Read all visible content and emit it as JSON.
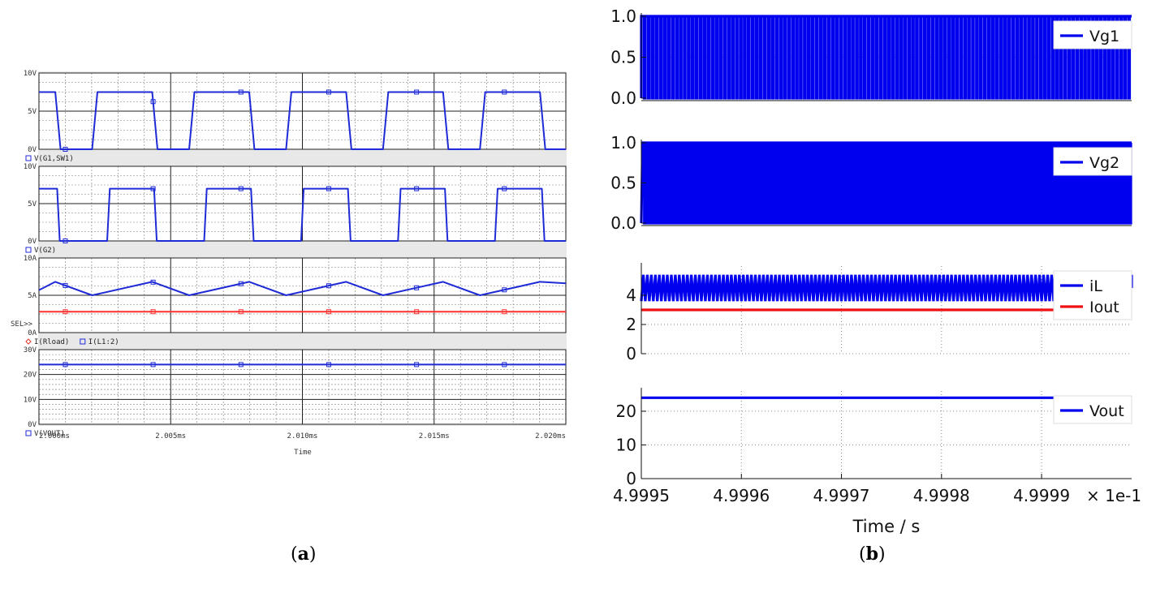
{
  "figure": {
    "caption_a": "a",
    "caption_b": "b"
  },
  "chart_data": [
    {
      "panel": "a",
      "type": "line",
      "tool_style": "pspice",
      "xlabel": "Time",
      "xlim": [
        2.0,
        2.02
      ],
      "x_ticks": [
        2.0,
        2.005,
        2.01,
        2.015,
        2.02
      ],
      "x_tick_labels": [
        "2.000ms",
        "2.005ms",
        "2.010ms",
        "2.015ms",
        "2.020ms"
      ],
      "period": 0.00368,
      "sel_marker": "SEL>>",
      "plots": [
        {
          "ylim": [
            0,
            10
          ],
          "y_ticks": [
            0,
            5,
            10
          ],
          "y_tick_labels": [
            "0V",
            "5V",
            "10V"
          ],
          "legend": [
            {
              "text": "V(G1,SW1)",
              "marker": "square",
              "color": "#1f2bd6"
            }
          ],
          "series": [
            {
              "name": "V(G1,SW1)",
              "kind": "gate",
              "high": 7.5,
              "low": 0,
              "rises": [
                2.0,
                2.00202,
                2.0057,
                2.00938,
                2.01306,
                2.01674
              ],
              "falls": [
                2.00062,
                2.0043,
                2.00798,
                2.01166,
                2.01534,
                2.01902
              ],
              "ramp": 0.0002,
              "color": "#1f2bd6"
            }
          ]
        },
        {
          "ylim": [
            0,
            10
          ],
          "y_ticks": [
            0,
            5,
            10
          ],
          "y_tick_labels": [
            "0V",
            "5V",
            "10V"
          ],
          "legend": [
            {
              "text": "V(G2)",
              "marker": "square",
              "color": "#1f2bd6"
            }
          ],
          "series": [
            {
              "name": "V(G2)",
              "kind": "gate",
              "high": 7.0,
              "low": 0,
              "rises": [
                2.0,
                2.00259,
                2.00627,
                2.00995,
                2.01363,
                2.01731
              ],
              "falls": [
                2.00069,
                2.00437,
                2.00805,
                2.01173,
                2.01541,
                2.01909
              ],
              "ramp": 0.0001,
              "color": "#1f2bd6"
            }
          ]
        },
        {
          "ylim": [
            0,
            10
          ],
          "y_ticks": [
            0,
            5,
            10
          ],
          "y_tick_labels": [
            "0A",
            "5A",
            "10A"
          ],
          "legend": [
            {
              "text": "I(Rload)",
              "marker": "diamond",
              "color": "#e03030"
            },
            {
              "text": "I(L1:2)",
              "marker": "square",
              "color": "#1f2bd6"
            }
          ],
          "series": [
            {
              "name": "I(L1:2)",
              "kind": "triangle",
              "min": 5.0,
              "max": 6.8,
              "peaks": [
                2.00062,
                2.0043,
                2.00798,
                2.01166,
                2.01534,
                2.01902
              ],
              "valleys": [
                2.00202,
                2.0057,
                2.00938,
                2.01306,
                2.01674
              ],
              "start": 5.7,
              "color": "#1f2bd6"
            },
            {
              "name": "I(Rload)",
              "kind": "const",
              "value": 2.8,
              "color": "#ff3030"
            }
          ]
        },
        {
          "ylim": [
            0,
            30
          ],
          "y_ticks": [
            0,
            10,
            20,
            30
          ],
          "y_tick_labels": [
            "0V",
            "10V",
            "20V",
            "30V"
          ],
          "minor_per_major": 5,
          "legend": [
            {
              "text": "V(VOUT)",
              "marker": "square",
              "color": "#1f2bd6"
            }
          ],
          "series": [
            {
              "name": "V(VOUT)",
              "kind": "const",
              "value": 24,
              "color": "#1f2bd6"
            }
          ]
        }
      ]
    },
    {
      "panel": "b",
      "type": "line",
      "xlabel": "Time / s",
      "xlim": [
        4.9995,
        4.99999
      ],
      "x_ticks": [
        4.9995,
        4.9996,
        4.9997,
        4.9998,
        4.9999
      ],
      "x_tick_labels": [
        "4.9995",
        "4.9996",
        "4.9997",
        "4.9998",
        "4.9999"
      ],
      "x_scale_label": "× 1e-1",
      "period": 4e-06,
      "plots": [
        {
          "ylim": [
            0,
            1
          ],
          "y_ticks": [
            0,
            0.5,
            1.0
          ],
          "y_tick_labels": [
            "0.0",
            "0.5",
            "1.0"
          ],
          "legend": [
            "Vg1"
          ],
          "series": [
            {
              "name": "Vg1",
              "kind": "pwm",
              "duty": 0.7,
              "phase": 0.0,
              "low": 0,
              "high": 1,
              "color": "#0000ee"
            }
          ]
        },
        {
          "ylim": [
            0,
            1
          ],
          "y_ticks": [
            0,
            0.5,
            1.0
          ],
          "y_tick_labels": [
            "0.0",
            "0.5",
            "1.0"
          ],
          "legend": [
            "Vg2"
          ],
          "series": [
            {
              "name": "Vg2",
              "kind": "pwm",
              "duty": 0.45,
              "phase": 0.3,
              "low": 0,
              "high": 1,
              "color": "#0000ee"
            }
          ]
        },
        {
          "ylim": [
            0,
            6
          ],
          "y_ticks": [
            0,
            2,
            4
          ],
          "y_tick_labels": [
            "0",
            "2",
            "4"
          ],
          "legend": [
            "iL",
            "Iout"
          ],
          "series": [
            {
              "name": "iL",
              "kind": "tri",
              "min": 3.6,
              "max": 5.4,
              "color": "#0000ee"
            },
            {
              "name": "Iout",
              "kind": "const",
              "value": 3.0,
              "color": "#ee1111"
            }
          ]
        },
        {
          "ylim": [
            0,
            26
          ],
          "y_ticks": [
            0,
            10,
            20
          ],
          "y_tick_labels": [
            "0",
            "10",
            "20"
          ],
          "legend": [
            "Vout"
          ],
          "series": [
            {
              "name": "Vout",
              "kind": "const",
              "value": 24,
              "color": "#0000ee"
            }
          ]
        }
      ]
    }
  ]
}
